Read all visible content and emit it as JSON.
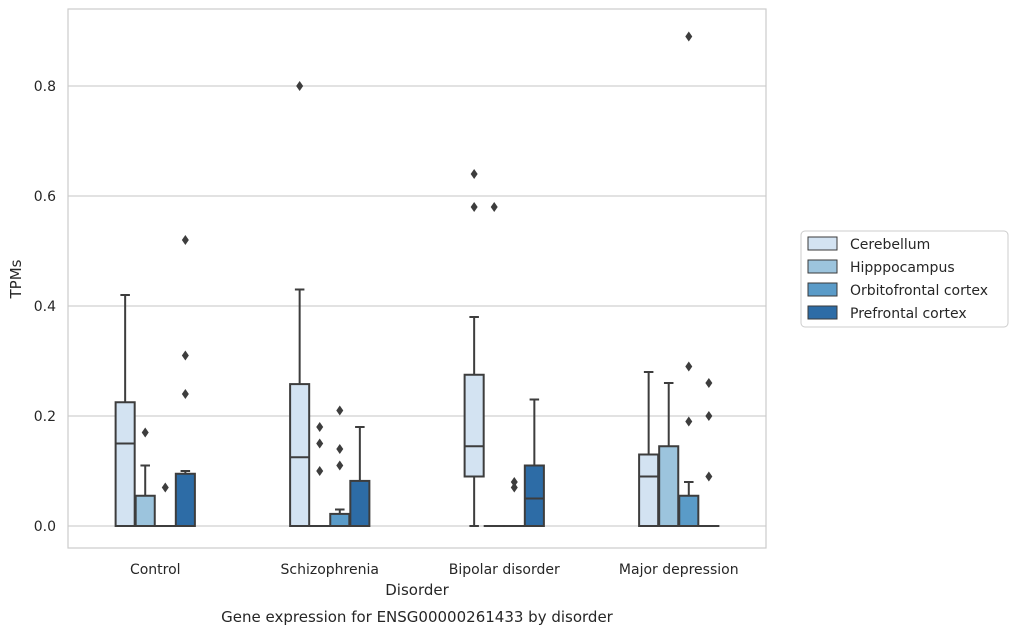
{
  "chart_data": {
    "type": "box",
    "title": "",
    "caption": "Gene expression for ENSG00000261433 by disorder",
    "xlabel": "Disorder",
    "ylabel": "TPMs",
    "ylim": [
      -0.04,
      0.94
    ],
    "yticks": [
      0.0,
      0.2,
      0.4,
      0.6,
      0.8
    ],
    "ytick_labels": [
      "0.0",
      "0.2",
      "0.4",
      "0.6",
      "0.8"
    ],
    "grid": "horizontal",
    "legend_position": "right",
    "categories": [
      "Control",
      "Schizophrenia",
      "Bipolar disorder",
      "Major depression"
    ],
    "series": [
      {
        "name": "Cerebellum",
        "color": "#d3e3f2",
        "boxes": [
          {
            "whislo": 0.0,
            "q1": 0.0,
            "med": 0.15,
            "q3": 0.225,
            "whishi": 0.42,
            "fliers": []
          },
          {
            "whislo": 0.0,
            "q1": 0.0,
            "med": 0.125,
            "q3": 0.258,
            "whishi": 0.43,
            "fliers": [
              0.8
            ]
          },
          {
            "whislo": 0.0,
            "q1": 0.09,
            "med": 0.145,
            "q3": 0.275,
            "whishi": 0.38,
            "fliers": [
              0.64,
              0.58
            ]
          },
          {
            "whislo": 0.0,
            "q1": 0.0,
            "med": 0.09,
            "q3": 0.13,
            "whishi": 0.28,
            "fliers": []
          }
        ]
      },
      {
        "name": "Hipppocampus",
        "color": "#9cc4dd",
        "boxes": [
          {
            "whislo": 0.0,
            "q1": 0.0,
            "med": 0.0,
            "q3": 0.055,
            "whishi": 0.11,
            "fliers": [
              0.17
            ]
          },
          {
            "whislo": 0.0,
            "q1": 0.0,
            "med": 0.0,
            "q3": 0.0,
            "whishi": 0.0,
            "fliers": [
              0.18,
              0.15,
              0.1
            ]
          },
          {
            "whislo": 0.0,
            "q1": 0.0,
            "med": 0.0,
            "q3": 0.0,
            "whishi": 0.0,
            "fliers": [
              0.58
            ]
          },
          {
            "whislo": 0.0,
            "q1": 0.0,
            "med": 0.0,
            "q3": 0.145,
            "whishi": 0.26,
            "fliers": []
          }
        ]
      },
      {
        "name": "Orbitofrontal cortex",
        "color": "#5a9bc8",
        "boxes": [
          {
            "whislo": 0.0,
            "q1": 0.0,
            "med": 0.0,
            "q3": 0.0,
            "whishi": 0.0,
            "fliers": [
              0.07
            ]
          },
          {
            "whislo": 0.0,
            "q1": 0.0,
            "med": 0.0,
            "q3": 0.022,
            "whishi": 0.03,
            "fliers": [
              0.21,
              0.14,
              0.11
            ]
          },
          {
            "whislo": 0.0,
            "q1": 0.0,
            "med": 0.0,
            "q3": 0.0,
            "whishi": 0.0,
            "fliers": [
              0.08,
              0.07
            ]
          },
          {
            "whislo": 0.0,
            "q1": 0.0,
            "med": 0.0,
            "q3": 0.055,
            "whishi": 0.08,
            "fliers": [
              0.89,
              0.29,
              0.19
            ]
          }
        ]
      },
      {
        "name": "Prefrontal cortex",
        "color": "#2d6ca6",
        "boxes": [
          {
            "whislo": 0.0,
            "q1": 0.0,
            "med": 0.0,
            "q3": 0.095,
            "whishi": 0.1,
            "fliers": [
              0.52,
              0.31,
              0.24
            ]
          },
          {
            "whislo": 0.0,
            "q1": 0.0,
            "med": 0.0,
            "q3": 0.082,
            "whishi": 0.18,
            "fliers": []
          },
          {
            "whislo": 0.0,
            "q1": 0.0,
            "med": 0.05,
            "q3": 0.11,
            "whishi": 0.23,
            "fliers": []
          },
          {
            "whislo": 0.0,
            "q1": 0.0,
            "med": 0.0,
            "q3": 0.0,
            "whishi": 0.0,
            "fliers": [
              0.26,
              0.2,
              0.09
            ]
          }
        ]
      }
    ]
  }
}
